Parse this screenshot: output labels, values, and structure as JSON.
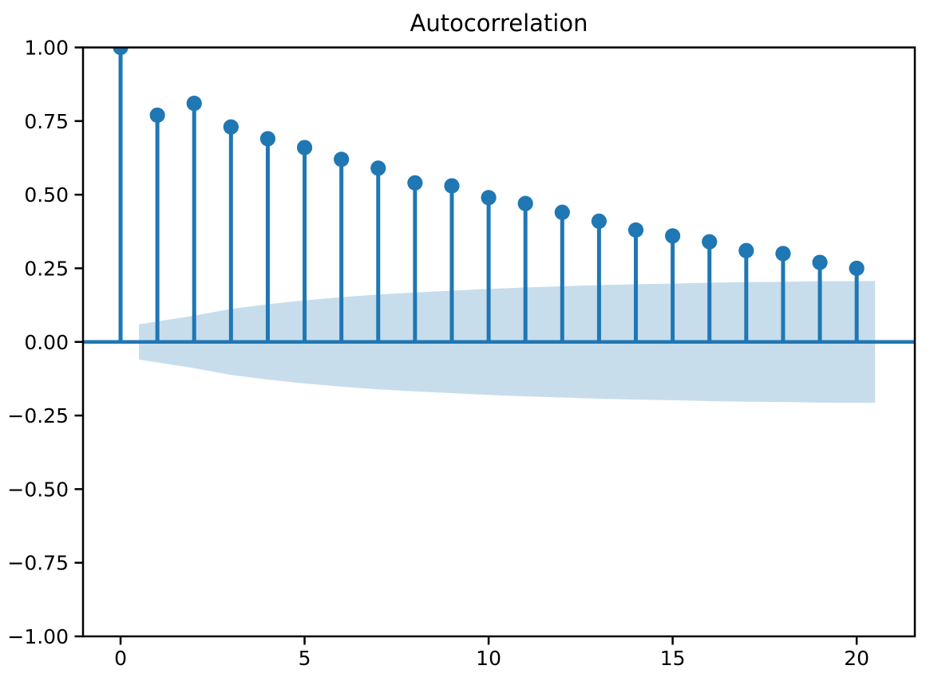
{
  "figure": {
    "background": "#ffffff"
  },
  "chart_data": {
    "type": "stem",
    "title": "Autocorrelation",
    "xlabel": "",
    "ylabel": "",
    "x": [
      0,
      1,
      2,
      3,
      4,
      5,
      6,
      7,
      8,
      9,
      10,
      11,
      12,
      13,
      14,
      15,
      16,
      17,
      18,
      19,
      20
    ],
    "values": [
      1.0,
      0.77,
      0.81,
      0.73,
      0.69,
      0.66,
      0.62,
      0.59,
      0.54,
      0.53,
      0.49,
      0.47,
      0.44,
      0.41,
      0.38,
      0.36,
      0.34,
      0.31,
      0.3,
      0.27,
      0.25
    ],
    "confidence_band": {
      "x": [
        0.5,
        2,
        3,
        4,
        5,
        6,
        7,
        8,
        9,
        10,
        11,
        12,
        13,
        14,
        15,
        16,
        17,
        18,
        19,
        20.5
      ],
      "upper": [
        0.06,
        0.089,
        0.112,
        0.128,
        0.141,
        0.152,
        0.161,
        0.168,
        0.174,
        0.18,
        0.185,
        0.189,
        0.193,
        0.196,
        0.198,
        0.201,
        0.203,
        0.204,
        0.206,
        0.207
      ],
      "lower": [
        -0.06,
        -0.089,
        -0.112,
        -0.128,
        -0.141,
        -0.152,
        -0.161,
        -0.168,
        -0.174,
        -0.18,
        -0.185,
        -0.189,
        -0.193,
        -0.196,
        -0.198,
        -0.201,
        -0.203,
        -0.204,
        -0.206,
        -0.207
      ]
    },
    "xlim": [
      -1.02,
      21.58
    ],
    "ylim": [
      -1.0,
      1.0
    ],
    "xticks": {
      "values": [
        0,
        5,
        10,
        15,
        20
      ],
      "labels": [
        "0",
        "5",
        "10",
        "15",
        "20"
      ]
    },
    "yticks": {
      "values": [
        1.0,
        0.75,
        0.5,
        0.25,
        0.0,
        -0.25,
        -0.5,
        -0.75,
        -1.0
      ],
      "labels": [
        "1.00",
        "0.75",
        "0.50",
        "0.25",
        "0.00",
        "−0.25",
        "−0.50",
        "−0.75",
        "−1.00"
      ]
    },
    "grid": false,
    "legend": null,
    "colors": {
      "stem": "#1f77b4",
      "marker": "#1f77b4",
      "zero_line": "#1f77b4",
      "band": "#1f77b4",
      "band_alpha": 0.25,
      "axis": "#000000",
      "text": "#000000"
    }
  }
}
